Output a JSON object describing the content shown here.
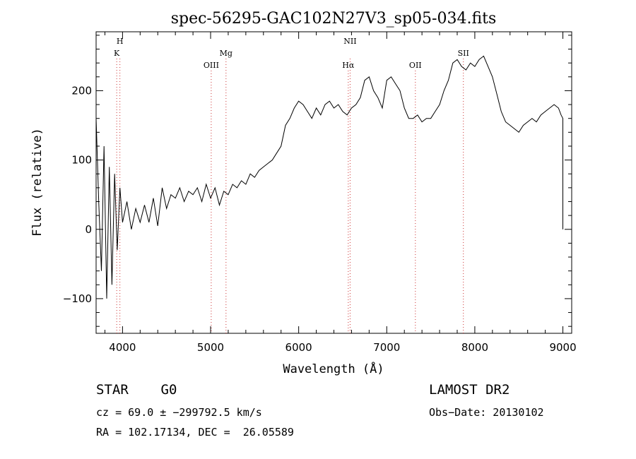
{
  "chart_data": {
    "type": "line",
    "title": "spec-56295-GAC102N27V3_sp05-034.fits",
    "xlabel": "Wavelength (Å)",
    "ylabel": "Flux (relative)",
    "xlim": [
      3700,
      9100
    ],
    "ylim": [
      -150,
      285
    ],
    "xticks": [
      4000,
      5000,
      6000,
      7000,
      8000,
      9000
    ],
    "yticks": [
      -100,
      0,
      100,
      200
    ],
    "series": [
      {
        "x": [
          3700,
          3730,
          3760,
          3790,
          3820,
          3850,
          3880,
          3910,
          3940,
          3970,
          4000,
          4050,
          4100,
          4150,
          4200,
          4250,
          4300,
          4350,
          4400,
          4450,
          4500,
          4550,
          4600,
          4650,
          4700,
          4750,
          4800,
          4850,
          4900,
          4950,
          5000,
          5050,
          5100,
          5150,
          5200,
          5250,
          5300,
          5350,
          5400,
          5450,
          5500,
          5550,
          5600,
          5650,
          5700,
          5750,
          5800,
          5850,
          5900,
          5950,
          6000,
          6050,
          6100,
          6150,
          6200,
          6250,
          6300,
          6350,
          6400,
          6450,
          6500,
          6550,
          6600,
          6650,
          6700,
          6750,
          6800,
          6850,
          6900,
          6950,
          7000,
          7050,
          7100,
          7150,
          7200,
          7250,
          7300,
          7350,
          7400,
          7450,
          7500,
          7550,
          7600,
          7650,
          7700,
          7750,
          7800,
          7850,
          7900,
          7950,
          8000,
          8050,
          8100,
          8150,
          8200,
          8250,
          8300,
          8350,
          8400,
          8450,
          8500,
          8550,
          8600,
          8650,
          8700,
          8750,
          8800,
          8850,
          8900,
          8950,
          8980,
          9000,
          9000
        ],
        "values": [
          160,
          40,
          -60,
          120,
          -100,
          90,
          -80,
          80,
          -30,
          60,
          10,
          40,
          0,
          30,
          10,
          35,
          10,
          45,
          5,
          60,
          30,
          50,
          45,
          60,
          40,
          55,
          50,
          60,
          40,
          65,
          45,
          60,
          35,
          55,
          50,
          65,
          60,
          70,
          65,
          80,
          75,
          85,
          90,
          95,
          100,
          110,
          120,
          150,
          160,
          175,
          185,
          180,
          170,
          160,
          175,
          165,
          180,
          185,
          175,
          180,
          170,
          165,
          175,
          180,
          190,
          215,
          220,
          200,
          190,
          175,
          215,
          220,
          210,
          200,
          175,
          160,
          160,
          165,
          155,
          160,
          160,
          170,
          180,
          200,
          215,
          240,
          245,
          235,
          230,
          240,
          235,
          245,
          250,
          235,
          220,
          195,
          170,
          155,
          150,
          145,
          140,
          150,
          155,
          160,
          155,
          165,
          170,
          175,
          180,
          175,
          165,
          160,
          0
        ]
      }
    ],
    "line_markers": [
      {
        "label": "H",
        "x": 3970,
        "row": 1
      },
      {
        "label": "K",
        "x": 3934,
        "row": 2
      },
      {
        "label": "OIII",
        "x": 5007,
        "row": 3
      },
      {
        "label": "Mg",
        "x": 5175,
        "row": 2
      },
      {
        "label": "NII",
        "x": 6584,
        "row": 1
      },
      {
        "label": "Hα",
        "x": 6563,
        "row": 3
      },
      {
        "label": "OII",
        "x": 7325,
        "row": 3
      },
      {
        "label": "SII",
        "x": 7870,
        "row": 2
      }
    ]
  },
  "footer": {
    "class_line": "STAR    G0",
    "survey": "LAMOST DR2",
    "cz_line": "cz = 69.0 ± −299792.5 km/s",
    "obs_date": "Obs−Date: 20130102",
    "coords_line": "RA = 102.17134, DEC =  26.05589"
  }
}
